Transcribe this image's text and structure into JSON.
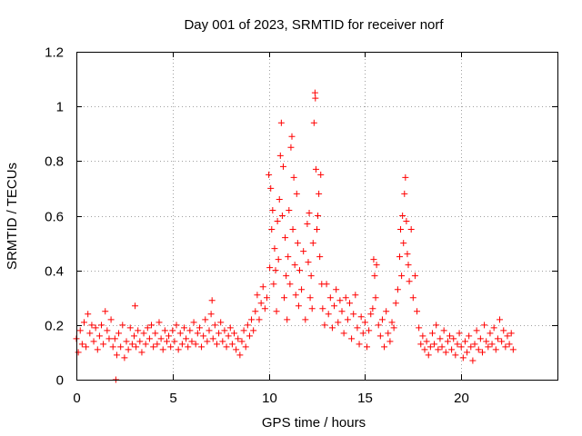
{
  "chart_data": {
    "type": "scatter",
    "title": "Day 001 of 2023, SRMTID for receiver norf",
    "xlabel": "GPS time / hours",
    "ylabel": "SRMTID / TECUs",
    "xlim": [
      0,
      25
    ],
    "ylim": [
      0,
      1.2
    ],
    "x_ticks": [
      0,
      5,
      10,
      15,
      20
    ],
    "x_tick_labels": [
      "0",
      "5",
      "10",
      "15",
      "20"
    ],
    "y_ticks": [
      0,
      0.2,
      0.4,
      0.6,
      0.8,
      1.0,
      1.2
    ],
    "y_tick_labels": [
      "0",
      "0.2",
      "0.4",
      "0.6",
      "0.8",
      "1",
      "1.2"
    ],
    "grid": true,
    "marker": "+",
    "color": "#ff0000",
    "series": [
      {
        "name": "SRMTID",
        "points": [
          [
            0.0,
            0.15
          ],
          [
            0.1,
            0.1
          ],
          [
            0.2,
            0.18
          ],
          [
            0.3,
            0.13
          ],
          [
            0.4,
            0.21
          ],
          [
            0.5,
            0.12
          ],
          [
            0.6,
            0.24
          ],
          [
            0.7,
            0.17
          ],
          [
            0.8,
            0.2
          ],
          [
            0.9,
            0.14
          ],
          [
            1.0,
            0.19
          ],
          [
            1.1,
            0.11
          ],
          [
            1.2,
            0.16
          ],
          [
            1.3,
            0.2
          ],
          [
            1.4,
            0.13
          ],
          [
            1.5,
            0.25
          ],
          [
            1.6,
            0.18
          ],
          [
            1.7,
            0.15
          ],
          [
            1.8,
            0.22
          ],
          [
            1.9,
            0.12
          ],
          [
            2.0,
            0.15
          ],
          [
            2.05,
            0.0
          ],
          [
            2.1,
            0.09
          ],
          [
            2.2,
            0.17
          ],
          [
            2.3,
            0.12
          ],
          [
            2.4,
            0.2
          ],
          [
            2.5,
            0.08
          ],
          [
            2.6,
            0.14
          ],
          [
            2.7,
            0.11
          ],
          [
            2.8,
            0.19
          ],
          [
            2.9,
            0.13
          ],
          [
            3.0,
            0.16
          ],
          [
            3.05,
            0.27
          ],
          [
            3.1,
            0.12
          ],
          [
            3.2,
            0.18
          ],
          [
            3.3,
            0.14
          ],
          [
            3.4,
            0.1
          ],
          [
            3.5,
            0.17
          ],
          [
            3.6,
            0.13
          ],
          [
            3.7,
            0.19
          ],
          [
            3.8,
            0.15
          ],
          [
            3.9,
            0.2
          ],
          [
            4.0,
            0.12
          ],
          [
            4.1,
            0.17
          ],
          [
            4.2,
            0.13
          ],
          [
            4.3,
            0.21
          ],
          [
            4.4,
            0.15
          ],
          [
            4.5,
            0.11
          ],
          [
            4.6,
            0.18
          ],
          [
            4.7,
            0.14
          ],
          [
            4.8,
            0.16
          ],
          [
            4.9,
            0.12
          ],
          [
            5.0,
            0.18
          ],
          [
            5.1,
            0.14
          ],
          [
            5.2,
            0.2
          ],
          [
            5.3,
            0.11
          ],
          [
            5.4,
            0.17
          ],
          [
            5.5,
            0.13
          ],
          [
            5.6,
            0.19
          ],
          [
            5.7,
            0.15
          ],
          [
            5.8,
            0.12
          ],
          [
            5.9,
            0.18
          ],
          [
            6.0,
            0.14
          ],
          [
            6.1,
            0.21
          ],
          [
            6.2,
            0.13
          ],
          [
            6.3,
            0.17
          ],
          [
            6.4,
            0.19
          ],
          [
            6.5,
            0.12
          ],
          [
            6.6,
            0.16
          ],
          [
            6.7,
            0.22
          ],
          [
            6.8,
            0.14
          ],
          [
            6.9,
            0.18
          ],
          [
            7.0,
            0.24
          ],
          [
            7.05,
            0.29
          ],
          [
            7.1,
            0.15
          ],
          [
            7.2,
            0.2
          ],
          [
            7.3,
            0.13
          ],
          [
            7.4,
            0.17
          ],
          [
            7.5,
            0.21
          ],
          [
            7.6,
            0.14
          ],
          [
            7.7,
            0.18
          ],
          [
            7.8,
            0.12
          ],
          [
            7.9,
            0.16
          ],
          [
            8.0,
            0.19
          ],
          [
            8.1,
            0.13
          ],
          [
            8.2,
            0.17
          ],
          [
            8.3,
            0.11
          ],
          [
            8.4,
            0.15
          ],
          [
            8.5,
            0.09
          ],
          [
            8.6,
            0.14
          ],
          [
            8.7,
            0.18
          ],
          [
            8.8,
            0.12
          ],
          [
            8.9,
            0.2
          ],
          [
            9.0,
            0.16
          ],
          [
            9.1,
            0.22
          ],
          [
            9.2,
            0.18
          ],
          [
            9.3,
            0.25
          ],
          [
            9.4,
            0.31
          ],
          [
            9.5,
            0.22
          ],
          [
            9.6,
            0.28
          ],
          [
            9.7,
            0.34
          ],
          [
            9.8,
            0.26
          ],
          [
            9.9,
            0.3
          ],
          [
            10.0,
            0.75
          ],
          [
            10.05,
            0.41
          ],
          [
            10.1,
            0.7
          ],
          [
            10.15,
            0.55
          ],
          [
            10.2,
            0.62
          ],
          [
            10.25,
            0.35
          ],
          [
            10.3,
            0.48
          ],
          [
            10.35,
            0.4
          ],
          [
            10.4,
            0.25
          ],
          [
            10.45,
            0.58
          ],
          [
            10.5,
            0.44
          ],
          [
            10.55,
            0.66
          ],
          [
            10.6,
            0.82
          ],
          [
            10.65,
            0.94
          ],
          [
            10.7,
            0.6
          ],
          [
            10.75,
            0.78
          ],
          [
            10.8,
            0.3
          ],
          [
            10.85,
            0.52
          ],
          [
            10.9,
            0.38
          ],
          [
            10.95,
            0.22
          ],
          [
            11.0,
            0.45
          ],
          [
            11.05,
            0.62
          ],
          [
            11.1,
            0.35
          ],
          [
            11.15,
            0.85
          ],
          [
            11.2,
            0.89
          ],
          [
            11.25,
            0.55
          ],
          [
            11.3,
            0.74
          ],
          [
            11.35,
            0.42
          ],
          [
            11.4,
            0.31
          ],
          [
            11.45,
            0.68
          ],
          [
            11.5,
            0.5
          ],
          [
            11.55,
            0.27
          ],
          [
            11.6,
            0.4
          ],
          [
            11.7,
            0.33
          ],
          [
            11.8,
            0.47
          ],
          [
            11.9,
            0.22
          ],
          [
            12.0,
            0.57
          ],
          [
            12.05,
            0.43
          ],
          [
            12.1,
            0.61
          ],
          [
            12.15,
            0.3
          ],
          [
            12.2,
            0.38
          ],
          [
            12.25,
            0.26
          ],
          [
            12.3,
            0.5
          ],
          [
            12.35,
            0.94
          ],
          [
            12.4,
            1.05
          ],
          [
            12.42,
            1.03
          ],
          [
            12.45,
            0.77
          ],
          [
            12.5,
            0.55
          ],
          [
            12.55,
            0.6
          ],
          [
            12.6,
            0.68
          ],
          [
            12.65,
            0.45
          ],
          [
            12.7,
            0.75
          ],
          [
            12.75,
            0.35
          ],
          [
            12.8,
            0.26
          ],
          [
            12.9,
            0.2
          ],
          [
            13.0,
            0.35
          ],
          [
            13.1,
            0.24
          ],
          [
            13.2,
            0.3
          ],
          [
            13.3,
            0.19
          ],
          [
            13.4,
            0.27
          ],
          [
            13.5,
            0.33
          ],
          [
            13.6,
            0.21
          ],
          [
            13.7,
            0.29
          ],
          [
            13.8,
            0.25
          ],
          [
            13.9,
            0.17
          ],
          [
            14.0,
            0.3
          ],
          [
            14.1,
            0.22
          ],
          [
            14.2,
            0.28
          ],
          [
            14.3,
            0.15
          ],
          [
            14.4,
            0.24
          ],
          [
            14.5,
            0.31
          ],
          [
            14.6,
            0.19
          ],
          [
            14.7,
            0.13
          ],
          [
            14.8,
            0.23
          ],
          [
            14.9,
            0.17
          ],
          [
            15.0,
            0.21
          ],
          [
            15.1,
            0.12
          ],
          [
            15.2,
            0.18
          ],
          [
            15.3,
            0.24
          ],
          [
            15.4,
            0.26
          ],
          [
            15.45,
            0.44
          ],
          [
            15.5,
            0.38
          ],
          [
            15.55,
            0.3
          ],
          [
            15.6,
            0.42
          ],
          [
            15.7,
            0.2
          ],
          [
            15.8,
            0.16
          ],
          [
            15.9,
            0.22
          ],
          [
            16.0,
            0.12
          ],
          [
            16.1,
            0.25
          ],
          [
            16.2,
            0.17
          ],
          [
            16.3,
            0.14
          ],
          [
            16.4,
            0.21
          ],
          [
            16.5,
            0.19
          ],
          [
            16.6,
            0.28
          ],
          [
            16.7,
            0.33
          ],
          [
            16.8,
            0.45
          ],
          [
            16.85,
            0.55
          ],
          [
            16.9,
            0.38
          ],
          [
            16.95,
            0.6
          ],
          [
            17.0,
            0.5
          ],
          [
            17.05,
            0.68
          ],
          [
            17.1,
            0.74
          ],
          [
            17.15,
            0.58
          ],
          [
            17.2,
            0.46
          ],
          [
            17.25,
            0.42
          ],
          [
            17.3,
            0.36
          ],
          [
            17.4,
            0.55
          ],
          [
            17.5,
            0.3
          ],
          [
            17.6,
            0.38
          ],
          [
            17.7,
            0.25
          ],
          [
            17.8,
            0.19
          ],
          [
            17.9,
            0.13
          ],
          [
            18.0,
            0.16
          ],
          [
            18.1,
            0.11
          ],
          [
            18.2,
            0.14
          ],
          [
            18.3,
            0.09
          ],
          [
            18.4,
            0.12
          ],
          [
            18.5,
            0.17
          ],
          [
            18.6,
            0.13
          ],
          [
            18.7,
            0.2
          ],
          [
            18.8,
            0.11
          ],
          [
            18.9,
            0.15
          ],
          [
            19.0,
            0.12
          ],
          [
            19.1,
            0.18
          ],
          [
            19.2,
            0.1
          ],
          [
            19.3,
            0.14
          ],
          [
            19.4,
            0.16
          ],
          [
            19.5,
            0.11
          ],
          [
            19.6,
            0.15
          ],
          [
            19.7,
            0.09
          ],
          [
            19.8,
            0.13
          ],
          [
            19.9,
            0.17
          ],
          [
            20.0,
            0.12
          ],
          [
            20.1,
            0.08
          ],
          [
            20.2,
            0.14
          ],
          [
            20.3,
            0.1
          ],
          [
            20.4,
            0.16
          ],
          [
            20.5,
            0.12
          ],
          [
            20.6,
            0.07
          ],
          [
            20.7,
            0.13
          ],
          [
            20.8,
            0.18
          ],
          [
            20.9,
            0.11
          ],
          [
            21.0,
            0.15
          ],
          [
            21.1,
            0.1
          ],
          [
            21.2,
            0.2
          ],
          [
            21.3,
            0.14
          ],
          [
            21.4,
            0.12
          ],
          [
            21.5,
            0.17
          ],
          [
            21.6,
            0.13
          ],
          [
            21.7,
            0.19
          ],
          [
            21.8,
            0.11
          ],
          [
            21.9,
            0.15
          ],
          [
            22.0,
            0.22
          ],
          [
            22.1,
            0.14
          ],
          [
            22.2,
            0.18
          ],
          [
            22.3,
            0.12
          ],
          [
            22.4,
            0.16
          ],
          [
            22.5,
            0.13
          ],
          [
            22.6,
            0.17
          ],
          [
            22.7,
            0.11
          ]
        ]
      }
    ]
  }
}
